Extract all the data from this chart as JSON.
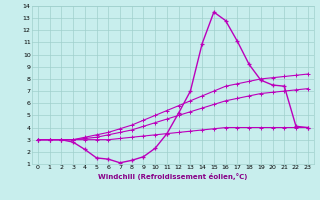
{
  "xlabel": "Windchill (Refroidissement éolien,°C)",
  "xlim": [
    -0.5,
    23.5
  ],
  "ylim": [
    1,
    14
  ],
  "xticks": [
    0,
    1,
    2,
    3,
    4,
    5,
    6,
    7,
    8,
    9,
    10,
    11,
    12,
    13,
    14,
    15,
    16,
    17,
    18,
    19,
    20,
    21,
    22,
    23
  ],
  "yticks": [
    1,
    2,
    3,
    4,
    5,
    6,
    7,
    8,
    9,
    10,
    11,
    12,
    13,
    14
  ],
  "bg_color": "#c8eeed",
  "grid_color": "#a0d0cc",
  "line_color": "#bb00bb",
  "line1_x": [
    0,
    1,
    2,
    3,
    4,
    5,
    6,
    7,
    8,
    9,
    10,
    11,
    12,
    13,
    14,
    15,
    16,
    17,
    18,
    19,
    20,
    21,
    22,
    23
  ],
  "line1_y": [
    3.0,
    3.0,
    3.0,
    3.0,
    3.0,
    3.0,
    3.0,
    3.1,
    3.2,
    3.3,
    3.4,
    3.5,
    3.6,
    3.7,
    3.8,
    3.9,
    4.0,
    4.0,
    4.0,
    4.0,
    4.0,
    4.0,
    4.0,
    4.0
  ],
  "line2_x": [
    0,
    1,
    2,
    3,
    4,
    5,
    6,
    7,
    8,
    9,
    10,
    11,
    12,
    13,
    14,
    15,
    16,
    17,
    18,
    19,
    20,
    21,
    22,
    23
  ],
  "line2_y": [
    3.0,
    3.0,
    3.0,
    3.0,
    3.1,
    3.2,
    3.4,
    3.6,
    3.8,
    4.1,
    4.4,
    4.7,
    5.0,
    5.3,
    5.6,
    5.9,
    6.2,
    6.4,
    6.6,
    6.8,
    6.9,
    7.0,
    7.1,
    7.2
  ],
  "line3_x": [
    0,
    1,
    2,
    3,
    4,
    5,
    6,
    7,
    8,
    9,
    10,
    11,
    12,
    13,
    14,
    15,
    16,
    17,
    18,
    19,
    20,
    21,
    22,
    23
  ],
  "line3_y": [
    3.0,
    3.0,
    3.0,
    3.0,
    3.2,
    3.4,
    3.6,
    3.9,
    4.2,
    4.6,
    5.0,
    5.4,
    5.8,
    6.2,
    6.6,
    7.0,
    7.4,
    7.6,
    7.8,
    8.0,
    8.1,
    8.2,
    8.3,
    8.4
  ],
  "line4_x": [
    0,
    1,
    2,
    3,
    4,
    5,
    6,
    7,
    8,
    9,
    10,
    11,
    12,
    13,
    14,
    15,
    16,
    17,
    18,
    19,
    20,
    21,
    22,
    23
  ],
  "line4_y": [
    3.0,
    3.0,
    3.0,
    2.8,
    2.2,
    1.5,
    1.4,
    1.1,
    1.3,
    1.6,
    2.3,
    3.5,
    5.2,
    7.0,
    10.9,
    13.5,
    12.8,
    11.1,
    9.2,
    7.9,
    7.5,
    7.4,
    4.1,
    4.0
  ]
}
